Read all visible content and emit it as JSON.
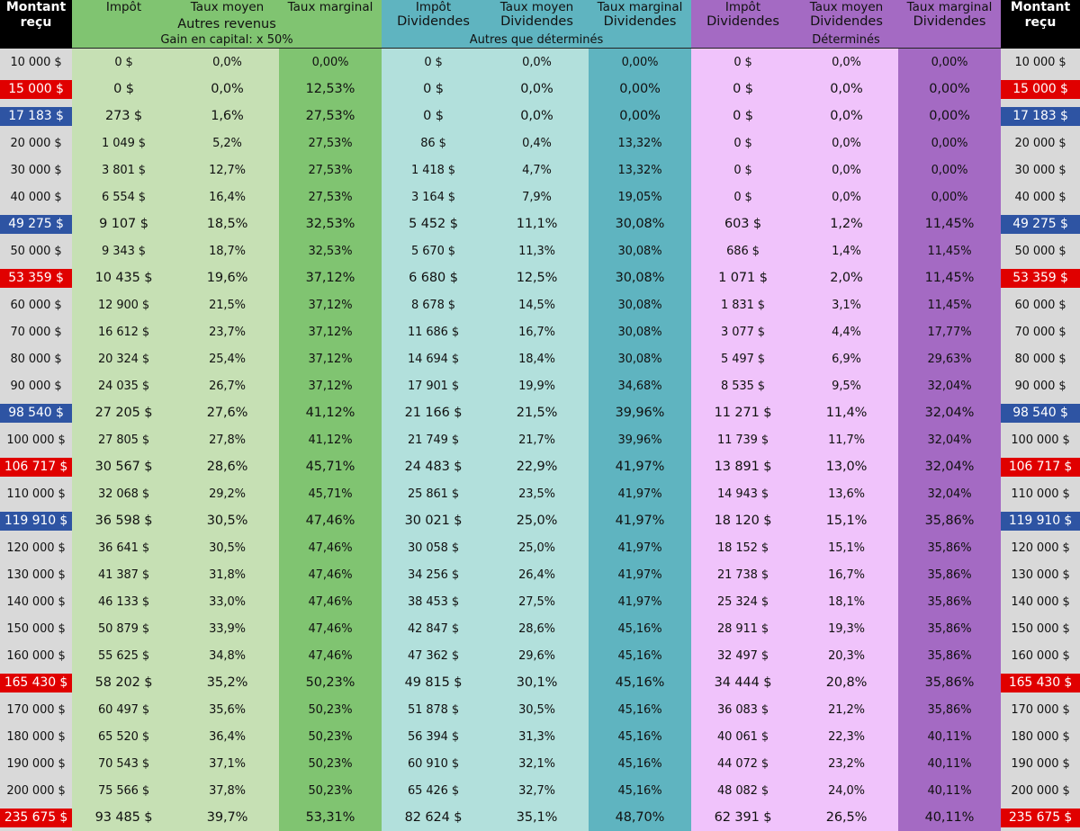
{
  "header": {
    "left_title_line1": "Montant",
    "left_title_line2": "reçu",
    "right_title_line1": "Montant",
    "right_title_line2": "reçu",
    "green": {
      "col1": "Impôt",
      "col2": "Taux moyen",
      "col3": "Taux marginal",
      "group": "Autres revenus",
      "sub": "Gain en capital: x 50%"
    },
    "teal": {
      "col1_line1": "Impôt",
      "col1_line2": "Dividendes",
      "col2_line1": "Taux moyen",
      "col2_line2": "Dividendes",
      "col3_line1": "Taux marginal",
      "col3_line2": "Dividendes",
      "sub": "Autres que déterminés"
    },
    "purple": {
      "col1_line1": "Impôt",
      "col1_line2": "Dividendes",
      "col2_line1": "Taux moyen",
      "col2_line2": "Dividendes",
      "col3_line1": "Taux marginal",
      "col3_line2": "Dividendes",
      "sub": "Déterminés"
    }
  },
  "colors": {
    "highlight_red": "#e00000",
    "highlight_blue": "#2e54a3",
    "green_light": "#c6e0b4",
    "green_dark": "#80c471",
    "teal_light": "#b2e0dc",
    "teal_dark": "#5fb4c0",
    "purple_light": "#f0c3fb",
    "purple_dark": "#a46ac3"
  },
  "rows": [
    {
      "amount": "10 000 $",
      "hl": "",
      "g": [
        "0 $",
        "0,0%",
        "0,00%"
      ],
      "t": [
        "0 $",
        "0,0%",
        "0,00%"
      ],
      "p": [
        "0 $",
        "0,0%",
        "0,00%"
      ]
    },
    {
      "amount": "15 000 $",
      "hl": "red",
      "g": [
        "0 $",
        "0,0%",
        "12,53%"
      ],
      "t": [
        "0 $",
        "0,0%",
        "0,00%"
      ],
      "p": [
        "0 $",
        "0,0%",
        "0,00%"
      ]
    },
    {
      "amount": "17 183 $",
      "hl": "blue",
      "g": [
        "273 $",
        "1,6%",
        "27,53%"
      ],
      "t": [
        "0 $",
        "0,0%",
        "0,00%"
      ],
      "p": [
        "0 $",
        "0,0%",
        "0,00%"
      ]
    },
    {
      "amount": "20 000 $",
      "hl": "",
      "g": [
        "1 049 $",
        "5,2%",
        "27,53%"
      ],
      "t": [
        "86 $",
        "0,4%",
        "13,32%"
      ],
      "p": [
        "0 $",
        "0,0%",
        "0,00%"
      ]
    },
    {
      "amount": "30 000 $",
      "hl": "",
      "g": [
        "3 801 $",
        "12,7%",
        "27,53%"
      ],
      "t": [
        "1 418 $",
        "4,7%",
        "13,32%"
      ],
      "p": [
        "0 $",
        "0,0%",
        "0,00%"
      ]
    },
    {
      "amount": "40 000 $",
      "hl": "",
      "g": [
        "6 554 $",
        "16,4%",
        "27,53%"
      ],
      "t": [
        "3 164 $",
        "7,9%",
        "19,05%"
      ],
      "p": [
        "0 $",
        "0,0%",
        "0,00%"
      ]
    },
    {
      "amount": "49 275 $",
      "hl": "blue",
      "g": [
        "9 107 $",
        "18,5%",
        "32,53%"
      ],
      "t": [
        "5 452 $",
        "11,1%",
        "30,08%"
      ],
      "p": [
        "603 $",
        "1,2%",
        "11,45%"
      ]
    },
    {
      "amount": "50 000 $",
      "hl": "",
      "g": [
        "9 343 $",
        "18,7%",
        "32,53%"
      ],
      "t": [
        "5 670 $",
        "11,3%",
        "30,08%"
      ],
      "p": [
        "686 $",
        "1,4%",
        "11,45%"
      ]
    },
    {
      "amount": "53 359 $",
      "hl": "red",
      "g": [
        "10 435 $",
        "19,6%",
        "37,12%"
      ],
      "t": [
        "6 680 $",
        "12,5%",
        "30,08%"
      ],
      "p": [
        "1 071 $",
        "2,0%",
        "11,45%"
      ]
    },
    {
      "amount": "60 000 $",
      "hl": "",
      "g": [
        "12 900 $",
        "21,5%",
        "37,12%"
      ],
      "t": [
        "8 678 $",
        "14,5%",
        "30,08%"
      ],
      "p": [
        "1 831 $",
        "3,1%",
        "11,45%"
      ]
    },
    {
      "amount": "70 000 $",
      "hl": "",
      "g": [
        "16 612 $",
        "23,7%",
        "37,12%"
      ],
      "t": [
        "11 686 $",
        "16,7%",
        "30,08%"
      ],
      "p": [
        "3 077 $",
        "4,4%",
        "17,77%"
      ]
    },
    {
      "amount": "80 000 $",
      "hl": "",
      "g": [
        "20 324 $",
        "25,4%",
        "37,12%"
      ],
      "t": [
        "14 694 $",
        "18,4%",
        "30,08%"
      ],
      "p": [
        "5 497 $",
        "6,9%",
        "29,63%"
      ]
    },
    {
      "amount": "90 000 $",
      "hl": "",
      "g": [
        "24 035 $",
        "26,7%",
        "37,12%"
      ],
      "t": [
        "17 901 $",
        "19,9%",
        "34,68%"
      ],
      "p": [
        "8 535 $",
        "9,5%",
        "32,04%"
      ]
    },
    {
      "amount": "98 540 $",
      "hl": "blue",
      "g": [
        "27 205 $",
        "27,6%",
        "41,12%"
      ],
      "t": [
        "21 166 $",
        "21,5%",
        "39,96%"
      ],
      "p": [
        "11 271 $",
        "11,4%",
        "32,04%"
      ]
    },
    {
      "amount": "100 000 $",
      "hl": "",
      "g": [
        "27 805 $",
        "27,8%",
        "41,12%"
      ],
      "t": [
        "21 749 $",
        "21,7%",
        "39,96%"
      ],
      "p": [
        "11 739 $",
        "11,7%",
        "32,04%"
      ]
    },
    {
      "amount": "106 717 $",
      "hl": "red",
      "g": [
        "30 567 $",
        "28,6%",
        "45,71%"
      ],
      "t": [
        "24 483 $",
        "22,9%",
        "41,97%"
      ],
      "p": [
        "13 891 $",
        "13,0%",
        "32,04%"
      ]
    },
    {
      "amount": "110 000 $",
      "hl": "",
      "g": [
        "32 068 $",
        "29,2%",
        "45,71%"
      ],
      "t": [
        "25 861 $",
        "23,5%",
        "41,97%"
      ],
      "p": [
        "14 943 $",
        "13,6%",
        "32,04%"
      ]
    },
    {
      "amount": "119 910 $",
      "hl": "blue",
      "g": [
        "36 598 $",
        "30,5%",
        "47,46%"
      ],
      "t": [
        "30 021 $",
        "25,0%",
        "41,97%"
      ],
      "p": [
        "18 120 $",
        "15,1%",
        "35,86%"
      ]
    },
    {
      "amount": "120 000 $",
      "hl": "",
      "g": [
        "36 641 $",
        "30,5%",
        "47,46%"
      ],
      "t": [
        "30 058 $",
        "25,0%",
        "41,97%"
      ],
      "p": [
        "18 152 $",
        "15,1%",
        "35,86%"
      ]
    },
    {
      "amount": "130 000 $",
      "hl": "",
      "g": [
        "41 387 $",
        "31,8%",
        "47,46%"
      ],
      "t": [
        "34 256 $",
        "26,4%",
        "41,97%"
      ],
      "p": [
        "21 738 $",
        "16,7%",
        "35,86%"
      ]
    },
    {
      "amount": "140 000 $",
      "hl": "",
      "g": [
        "46 133 $",
        "33,0%",
        "47,46%"
      ],
      "t": [
        "38 453 $",
        "27,5%",
        "41,97%"
      ],
      "p": [
        "25 324 $",
        "18,1%",
        "35,86%"
      ]
    },
    {
      "amount": "150 000 $",
      "hl": "",
      "g": [
        "50 879 $",
        "33,9%",
        "47,46%"
      ],
      "t": [
        "42 847 $",
        "28,6%",
        "45,16%"
      ],
      "p": [
        "28 911 $",
        "19,3%",
        "35,86%"
      ]
    },
    {
      "amount": "160 000 $",
      "hl": "",
      "g": [
        "55 625 $",
        "34,8%",
        "47,46%"
      ],
      "t": [
        "47 362 $",
        "29,6%",
        "45,16%"
      ],
      "p": [
        "32 497 $",
        "20,3%",
        "35,86%"
      ]
    },
    {
      "amount": "165 430 $",
      "hl": "red",
      "g": [
        "58 202 $",
        "35,2%",
        "50,23%"
      ],
      "t": [
        "49 815 $",
        "30,1%",
        "45,16%"
      ],
      "p": [
        "34 444 $",
        "20,8%",
        "35,86%"
      ]
    },
    {
      "amount": "170 000 $",
      "hl": "",
      "g": [
        "60 497 $",
        "35,6%",
        "50,23%"
      ],
      "t": [
        "51 878 $",
        "30,5%",
        "45,16%"
      ],
      "p": [
        "36 083 $",
        "21,2%",
        "35,86%"
      ]
    },
    {
      "amount": "180 000 $",
      "hl": "",
      "g": [
        "65 520 $",
        "36,4%",
        "50,23%"
      ],
      "t": [
        "56 394 $",
        "31,3%",
        "45,16%"
      ],
      "p": [
        "40 061 $",
        "22,3%",
        "40,11%"
      ]
    },
    {
      "amount": "190 000 $",
      "hl": "",
      "g": [
        "70 543 $",
        "37,1%",
        "50,23%"
      ],
      "t": [
        "60 910 $",
        "32,1%",
        "45,16%"
      ],
      "p": [
        "44 072 $",
        "23,2%",
        "40,11%"
      ]
    },
    {
      "amount": "200 000 $",
      "hl": "",
      "g": [
        "75 566 $",
        "37,8%",
        "50,23%"
      ],
      "t": [
        "65 426 $",
        "32,7%",
        "45,16%"
      ],
      "p": [
        "48 082 $",
        "24,0%",
        "40,11%"
      ]
    },
    {
      "amount": "235 675 $",
      "hl": "red",
      "g": [
        "93 485 $",
        "39,7%",
        "53,31%"
      ],
      "t": [
        "82 624 $",
        "35,1%",
        "48,70%"
      ],
      "p": [
        "62 391 $",
        "26,5%",
        "40,11%"
      ]
    }
  ]
}
